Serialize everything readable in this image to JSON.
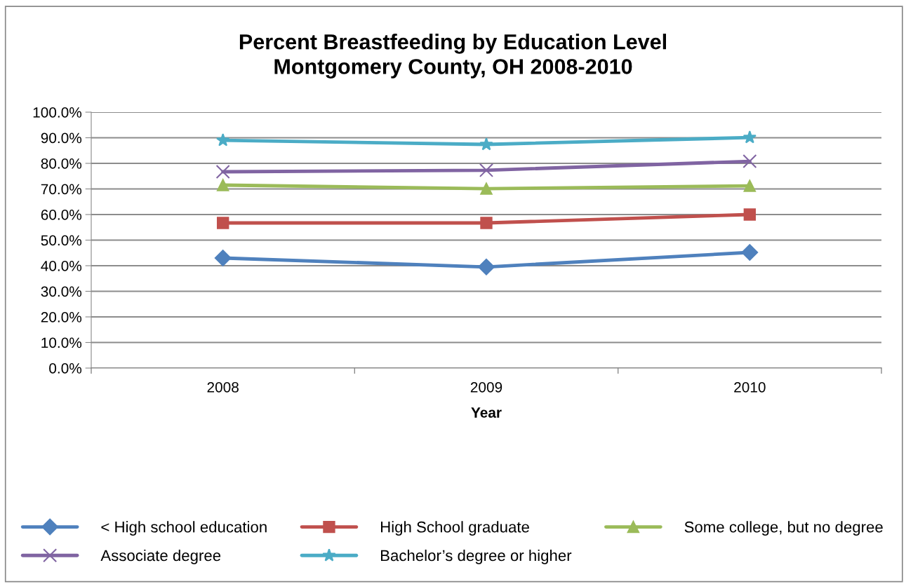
{
  "chart_data": {
    "type": "line",
    "title": "Percent Breastfeeding by Education Level\nMontgomery County, OH 2008-2010",
    "xlabel": "Year",
    "categories": [
      "2008",
      "2009",
      "2010"
    ],
    "series": [
      {
        "name": "< High school education",
        "color": "#4f81bd",
        "marker": "diamond",
        "values": [
          43.0,
          39.5,
          45.2
        ]
      },
      {
        "name": "High School graduate",
        "color": "#c0504d",
        "marker": "square",
        "values": [
          56.7,
          56.7,
          60.0
        ]
      },
      {
        "name": "Some college, but no degree",
        "color": "#9bbb59",
        "marker": "triangle",
        "values": [
          71.5,
          70.1,
          71.2
        ]
      },
      {
        "name": "Associate degree",
        "color": "#8064a2",
        "marker": "cross",
        "values": [
          76.7,
          77.3,
          80.8
        ]
      },
      {
        "name": "Bachelor’s degree or higher",
        "color": "#4bacc6",
        "marker": "star",
        "values": [
          89.0,
          87.4,
          90.1
        ]
      }
    ],
    "ylim": [
      0,
      100
    ],
    "yticks": [
      {
        "value": 0,
        "label": "0.0%"
      },
      {
        "value": 10,
        "label": "10.0%"
      },
      {
        "value": 20,
        "label": "20.0%"
      },
      {
        "value": 30,
        "label": "30.0%"
      },
      {
        "value": 40,
        "label": "40.0%"
      },
      {
        "value": 50,
        "label": "50.0%"
      },
      {
        "value": 60,
        "label": "60.0%"
      },
      {
        "value": 70,
        "label": "70.0%"
      },
      {
        "value": 80,
        "label": "80.0%"
      },
      {
        "value": 90,
        "label": "90.0%"
      },
      {
        "value": 100,
        "label": "100.0%"
      }
    ],
    "grid": "y",
    "legend": "bottom",
    "line_style": "solid"
  }
}
